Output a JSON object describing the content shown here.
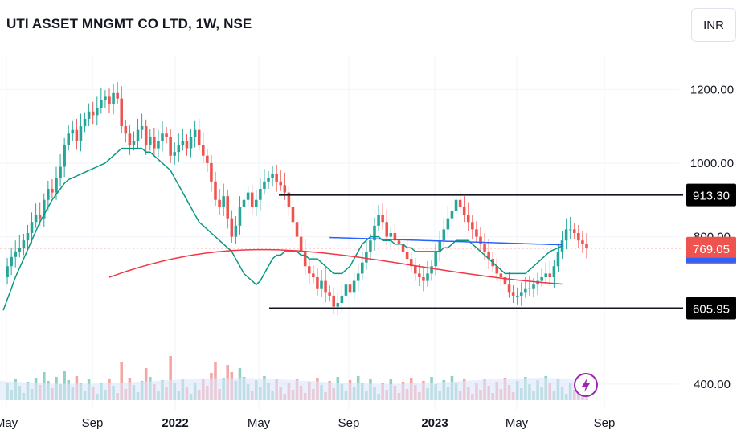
{
  "header": {
    "title": "UTI ASSET MNGMT CO LTD, 1W, NSE",
    "currency": "INR"
  },
  "chart_data": {
    "type": "candlestick",
    "title": "UTI ASSET MNGMT CO LTD, 1W, NSE",
    "ylim": [
      330,
      1290
    ],
    "y_ticks": [
      {
        "value": 1200,
        "label": "1200.00"
      },
      {
        "value": 1000,
        "label": "1000.00"
      },
      {
        "value": 800,
        "label": "800.00"
      },
      {
        "value": 400,
        "label": "400.00"
      }
    ],
    "x_ticks": [
      {
        "label": "May",
        "bold": false
      },
      {
        "label": "Sep",
        "bold": false
      },
      {
        "label": "2022",
        "bold": true
      },
      {
        "label": "May",
        "bold": false
      },
      {
        "label": "Sep",
        "bold": false
      },
      {
        "label": "2023",
        "bold": true
      },
      {
        "label": "May",
        "bold": false
      },
      {
        "label": "Sep",
        "bold": false
      }
    ],
    "price_levels": [
      {
        "value": 913.3,
        "label": "913.30"
      },
      {
        "value": 605.95,
        "label": "605.95"
      }
    ],
    "last_price": {
      "value": 769.05,
      "label": "769.05"
    },
    "colors": {
      "up": "#26a69a",
      "down": "#ef5350",
      "ma_short": "#089981",
      "ma_long": "#f23645",
      "ma_blue": "#2962ff",
      "volume_up": "#8fd1c4",
      "volume_down": "#f4a6a4",
      "volume_ma": "#b7c8f3"
    },
    "closes": [
      690,
      720,
      745,
      760,
      770,
      790,
      810,
      840,
      860,
      850,
      900,
      930,
      920,
      960,
      990,
      1050,
      1080,
      1090,
      1060,
      1100,
      1120,
      1140,
      1130,
      1150,
      1170,
      1180,
      1160,
      1190,
      1175,
      1100,
      1080,
      1050,
      1060,
      1090,
      1100,
      1050,
      1070,
      1040,
      1060,
      1080,
      1070,
      1020,
      1030,
      1050,
      1060,
      1040,
      1070,
      1090,
      1050,
      1020,
      1000,
      950,
      900,
      880,
      910,
      850,
      800,
      830,
      880,
      900,
      920,
      880,
      900,
      930,
      950,
      960,
      970,
      950,
      940,
      920,
      880,
      840,
      800,
      760,
      720,
      700,
      690,
      660,
      680,
      650,
      640,
      610,
      620,
      640,
      670,
      650,
      680,
      700,
      730,
      760,
      790,
      830,
      860,
      840,
      800,
      810,
      790,
      780,
      760,
      740,
      720,
      700,
      690,
      680,
      700,
      720,
      760,
      790,
      820,
      850,
      870,
      900,
      880,
      860,
      840,
      820,
      800,
      780,
      760,
      740,
      720,
      700,
      690,
      670,
      650,
      640,
      640,
      650,
      660,
      660,
      670,
      680,
      690,
      700,
      690,
      720,
      760,
      790,
      820,
      820,
      810,
      790,
      780,
      769.05
    ],
    "ma_short": [
      600,
      630,
      660,
      690,
      715,
      740,
      765,
      790,
      815,
      840,
      860,
      880,
      900,
      915,
      930,
      945,
      955,
      960,
      965,
      970,
      975,
      980,
      985,
      990,
      995,
      1000,
      1010,
      1020,
      1030,
      1040,
      1040,
      1040,
      1040,
      1040,
      1040,
      1030,
      1030,
      1020,
      1010,
      1000,
      990,
      980,
      960,
      940,
      920,
      900,
      880,
      860,
      840,
      830,
      820,
      810,
      800,
      790,
      780,
      770,
      760,
      740,
      720,
      700,
      690,
      680,
      670,
      680,
      700,
      720,
      740,
      750,
      750,
      760,
      760,
      760,
      760,
      750,
      750,
      740,
      740,
      740,
      730,
      720,
      710,
      700,
      700,
      700,
      710,
      720,
      740,
      760,
      780,
      790,
      800,
      800,
      800,
      790,
      790,
      790,
      780,
      780,
      780,
      770,
      770,
      760,
      760,
      760,
      760,
      760,
      760,
      760,
      770,
      770,
      780,
      790,
      790,
      790,
      790,
      780,
      770,
      760,
      750,
      740,
      730,
      720,
      710,
      700,
      700,
      700,
      700,
      700,
      700,
      710,
      720,
      730,
      740,
      750,
      760,
      765,
      770,
      775
    ],
    "ma_long": [
      null,
      null,
      null,
      null,
      null,
      null,
      null,
      null,
      null,
      null,
      null,
      null,
      null,
      null,
      null,
      null,
      null,
      null,
      null,
      null,
      null,
      null,
      null,
      null,
      null,
      null,
      null,
      null,
      null,
      null,
      null,
      null,
      null,
      null,
      null,
      null,
      null,
      null,
      null,
      null,
      null,
      null,
      null,
      null,
      null,
      null,
      null,
      null,
      null,
      null,
      null,
      null,
      null,
      null,
      null,
      null,
      null,
      null,
      null,
      null,
      null,
      null,
      null,
      null,
      null,
      null,
      null,
      null,
      null,
      null,
      null,
      null,
      null,
      null,
      null,
      null,
      null,
      null,
      null,
      null,
      null,
      null,
      null,
      null,
      null,
      null,
      null,
      null,
      null,
      null,
      null,
      null,
      null,
      null,
      null,
      null,
      null,
      null,
      null,
      null,
      null,
      null,
      null,
      null,
      null,
      null,
      null,
      null,
      null,
      null,
      null,
      null,
      null,
      null,
      null,
      null,
      null,
      null,
      null,
      null,
      null,
      null,
      null,
      null,
      null,
      null,
      null,
      null,
      null,
      null,
      null,
      null,
      null,
      null,
      null,
      null,
      null,
      null,
      null,
      null,
      null,
      null,
      null,
      null
    ]
  }
}
